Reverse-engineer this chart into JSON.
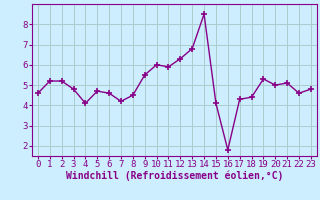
{
  "x": [
    0,
    1,
    2,
    3,
    4,
    5,
    6,
    7,
    8,
    9,
    10,
    11,
    12,
    13,
    14,
    15,
    16,
    17,
    18,
    19,
    20,
    21,
    22,
    23
  ],
  "y": [
    4.6,
    5.2,
    5.2,
    4.8,
    4.1,
    4.7,
    4.6,
    4.2,
    4.5,
    5.5,
    6.0,
    5.9,
    6.3,
    6.8,
    8.5,
    4.1,
    1.8,
    4.3,
    4.4,
    5.3,
    5.0,
    5.1,
    4.6,
    4.8
  ],
  "line_color": "#880088",
  "marker": "+",
  "marker_size": 4,
  "marker_lw": 1.2,
  "bg_color": "#cceeff",
  "grid_color": "#aacccc",
  "xlabel": "Windchill (Refroidissement éolien,°C)",
  "xlim": [
    -0.5,
    23.5
  ],
  "ylim": [
    1.5,
    9.0
  ],
  "yticks": [
    2,
    3,
    4,
    5,
    6,
    7,
    8
  ],
  "xticks": [
    0,
    1,
    2,
    3,
    4,
    5,
    6,
    7,
    8,
    9,
    10,
    11,
    12,
    13,
    14,
    15,
    16,
    17,
    18,
    19,
    20,
    21,
    22,
    23
  ],
  "tick_color": "#880088",
  "label_color": "#880088",
  "spine_color": "#880088",
  "font_size": 6.5,
  "xlabel_fontsize": 7,
  "line_width": 1.0
}
